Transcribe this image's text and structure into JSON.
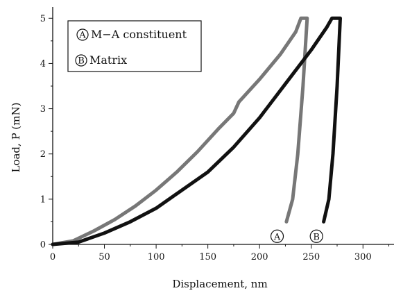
{
  "chart_data": {
    "type": "line",
    "xlabel": "Displacement, nm",
    "ylabel": "Load, P (mN)",
    "xlim": [
      0,
      330
    ],
    "ylim": [
      0,
      5.25
    ],
    "x_ticks": [
      "0",
      "50",
      "100",
      "150",
      "200",
      "250",
      "300"
    ],
    "y_ticks": [
      "0",
      "1",
      "2",
      "3",
      "4",
      "5"
    ],
    "legend_position": "top-left",
    "legend": [
      {
        "marker": "A",
        "label": "M−A constituent"
      },
      {
        "marker": "B",
        "label": "Matrix"
      }
    ],
    "series": [
      {
        "marker": "A",
        "label": "M−A constituent",
        "color": "#777777",
        "loading": [
          [
            0,
            0
          ],
          [
            20,
            0.08
          ],
          [
            40,
            0.3
          ],
          [
            60,
            0.55
          ],
          [
            80,
            0.85
          ],
          [
            100,
            1.2
          ],
          [
            120,
            1.6
          ],
          [
            140,
            2.05
          ],
          [
            160,
            2.55
          ],
          [
            175,
            2.9
          ],
          [
            180,
            3.15
          ],
          [
            200,
            3.65
          ],
          [
            220,
            4.2
          ],
          [
            235,
            4.7
          ],
          [
            240,
            5.0
          ]
        ],
        "hold": [
          [
            240,
            5.0
          ],
          [
            246,
            5.0
          ]
        ],
        "unloading": [
          [
            246,
            5.0
          ],
          [
            242,
            3.5
          ],
          [
            237,
            2.0
          ],
          [
            232,
            1.0
          ],
          [
            226,
            0.5
          ]
        ]
      },
      {
        "marker": "B",
        "label": "Matrix",
        "color": "#111111",
        "loading": [
          [
            0,
            0
          ],
          [
            25,
            0.05
          ],
          [
            50,
            0.25
          ],
          [
            75,
            0.5
          ],
          [
            100,
            0.8
          ],
          [
            125,
            1.2
          ],
          [
            150,
            1.6
          ],
          [
            175,
            2.15
          ],
          [
            200,
            2.8
          ],
          [
            225,
            3.55
          ],
          [
            250,
            4.3
          ],
          [
            265,
            4.8
          ],
          [
            270,
            5.0
          ]
        ],
        "hold": [
          [
            270,
            5.0
          ],
          [
            278,
            5.0
          ]
        ],
        "unloading": [
          [
            278,
            5.0
          ],
          [
            275,
            3.5
          ],
          [
            271,
            2.0
          ],
          [
            267,
            1.0
          ],
          [
            262,
            0.5
          ]
        ]
      }
    ],
    "curve_labels": [
      {
        "marker": "A",
        "x": 217,
        "y": 0.18
      },
      {
        "marker": "B",
        "x": 255,
        "y": 0.18
      }
    ]
  }
}
